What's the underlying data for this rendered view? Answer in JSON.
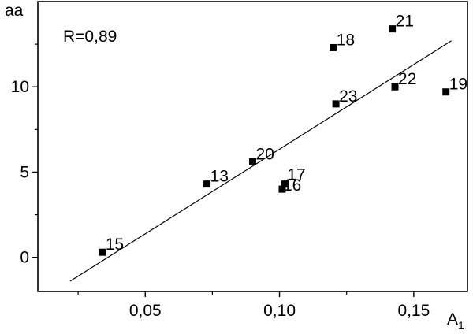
{
  "chart_data": {
    "type": "scatter",
    "xlabel": "A",
    "xlabel_subscript": "1",
    "ylabel": "aa",
    "annotation": "R=0,89",
    "xlim": [
      0.01,
      0.17
    ],
    "ylim": [
      -2.0,
      15.0
    ],
    "x_ticks": [
      0.05,
      0.1,
      0.15
    ],
    "x_tick_labels": [
      "0,05",
      "0,10",
      "0,15"
    ],
    "y_ticks": [
      0,
      5,
      10
    ],
    "y_tick_labels": [
      "0",
      "5",
      "10"
    ],
    "points": [
      {
        "label": "15",
        "x": 0.034,
        "y": 0.3
      },
      {
        "label": "13",
        "x": 0.073,
        "y": 4.3
      },
      {
        "label": "20",
        "x": 0.09,
        "y": 5.6
      },
      {
        "label": "16",
        "x": 0.101,
        "y": 4.0
      },
      {
        "label": "17",
        "x": 0.102,
        "y": 4.3
      },
      {
        "label": "18",
        "x": 0.12,
        "y": 12.3
      },
      {
        "label": "23",
        "x": 0.121,
        "y": 9.0
      },
      {
        "label": "21",
        "x": 0.142,
        "y": 13.4
      },
      {
        "label": "22",
        "x": 0.143,
        "y": 10.0
      },
      {
        "label": "19",
        "x": 0.162,
        "y": 9.7
      }
    ],
    "fit_line": {
      "x": [
        0.022,
        0.164
      ],
      "y": [
        -1.4,
        12.7
      ]
    },
    "grid": false,
    "legend": "none"
  }
}
